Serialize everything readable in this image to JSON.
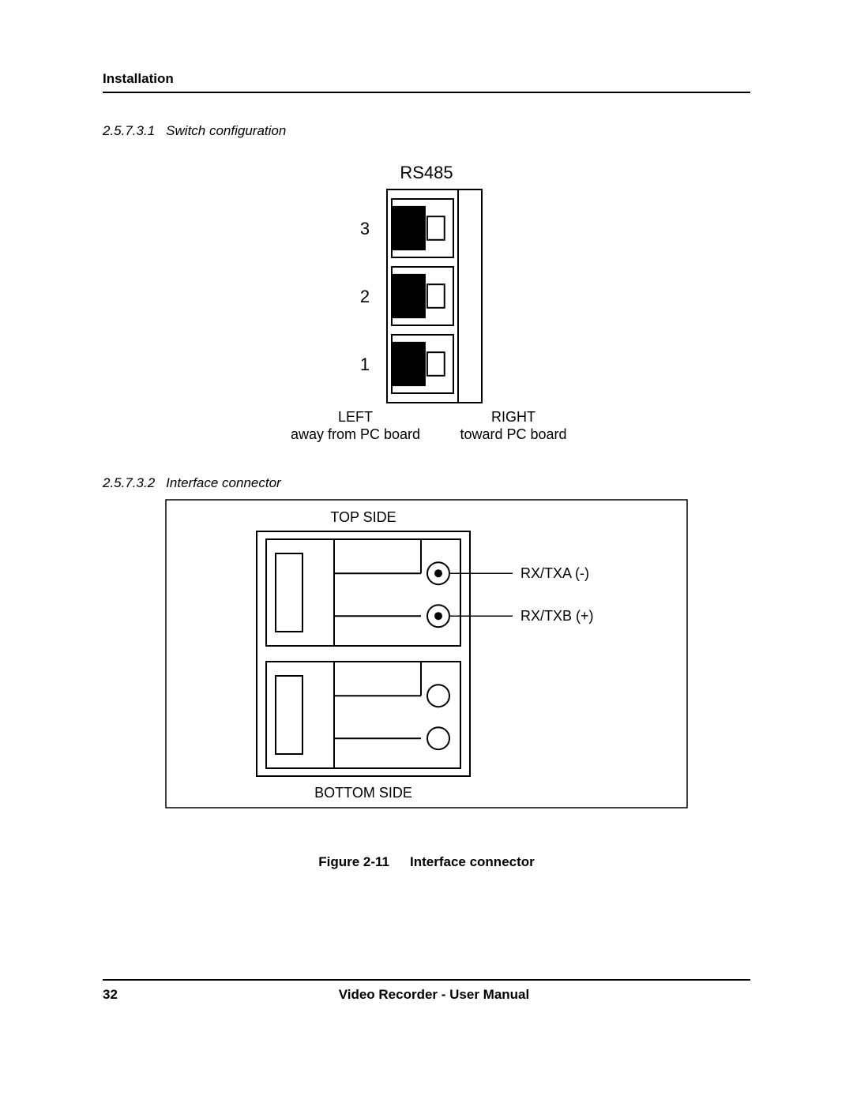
{
  "header": "Installation",
  "section1": {
    "num": "2.5.7.3.1",
    "title": "Switch configuration"
  },
  "section2": {
    "num": "2.5.7.3.2",
    "title": "Interface connector"
  },
  "switch_diagram": {
    "title": "RS485",
    "rows": [
      "3",
      "2",
      "1"
    ],
    "left_label_top": "LEFT",
    "left_label_bottom": "away from PC board",
    "right_label_top": "RIGHT",
    "right_label_bottom": "toward PC board",
    "colors": {
      "stroke": "#000000",
      "slider_fill": "#000000",
      "handle_fill": "#ffffff",
      "bg": "#ffffff"
    },
    "stroke_width": 2
  },
  "connector_diagram": {
    "top_label": "TOP SIDE",
    "bottom_label": "BOTTOM SIDE",
    "pin_labels": [
      "RX/TXA (-)",
      "RX/TXB (+)"
    ],
    "colors": {
      "stroke": "#000000",
      "bg": "#ffffff"
    },
    "stroke_width": 2,
    "circle_r_outer": 14,
    "circle_r_inner": 5
  },
  "figure_caption": {
    "num": "Figure 2-11",
    "title": "Interface connector"
  },
  "footer": {
    "page": "32",
    "title": "Video Recorder - User Manual"
  }
}
